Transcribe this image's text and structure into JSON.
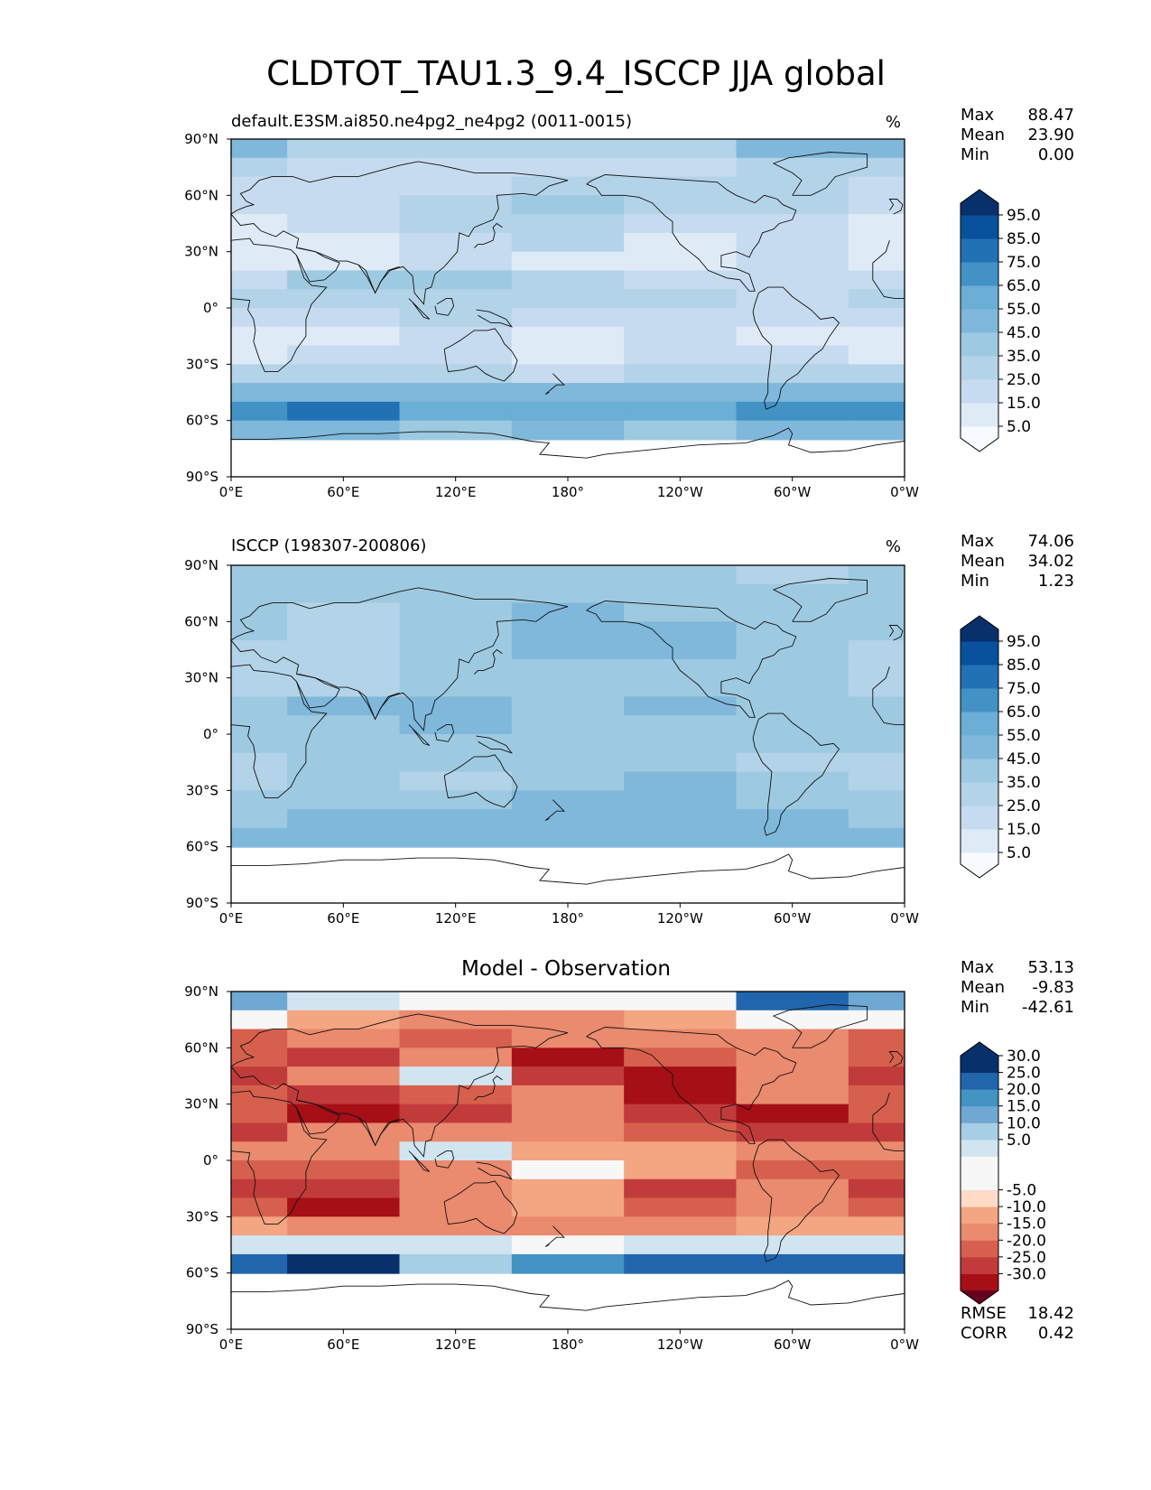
{
  "title": "CLDTOT_TAU1.3_9.4_ISCCP JJA global",
  "colors": {
    "blues": [
      "#f7fbff",
      "#deebf7",
      "#c6dbef",
      "#b3d3e8",
      "#9ecae1",
      "#7fb8da",
      "#6baed6",
      "#4292c6",
      "#2171b5",
      "#08519c",
      "#08306b"
    ],
    "rdbu": [
      "#67001f",
      "#a50f15",
      "#c23b3b",
      "#d6604d",
      "#ea8a6e",
      "#f4a582",
      "#fddbc7",
      "#f7f7f7",
      "#d1e5f0",
      "#a6cfe6",
      "#6fa8d2",
      "#4393c3",
      "#2166ac",
      "#08306b"
    ],
    "coast": "#111111"
  },
  "panels": [
    {
      "id": "test",
      "subtitle_left": "default.E3SM.ai850.ne4pg2_ne4pg2 (0011-0015)",
      "subtitle_right": "%",
      "stats": [
        {
          "label": "Max",
          "value": "88.47"
        },
        {
          "label": "Mean",
          "value": "23.90"
        },
        {
          "label": "Min",
          "value": "0.00"
        }
      ],
      "colorbar": {
        "palette": "blues",
        "levels": [
          0,
          5,
          10,
          15,
          20,
          25,
          30,
          35,
          40,
          45,
          50,
          55,
          60,
          65,
          70,
          75,
          80,
          85,
          90,
          95,
          100
        ],
        "labels": [
          "5.0",
          "15.0",
          "25.0",
          "35.0",
          "45.0",
          "55.0",
          "65.0",
          "75.0",
          "85.0",
          "95.0"
        ]
      }
    },
    {
      "id": "ref",
      "subtitle_left": "ISCCP (198307-200806)",
      "subtitle_right": "%",
      "stats": [
        {
          "label": "Max",
          "value": "74.06"
        },
        {
          "label": "Mean",
          "value": "34.02"
        },
        {
          "label": "Min",
          "value": "1.23"
        }
      ],
      "colorbar": {
        "palette": "blues",
        "levels": [
          0,
          5,
          10,
          15,
          20,
          25,
          30,
          35,
          40,
          45,
          50,
          55,
          60,
          65,
          70,
          75,
          80,
          85,
          90,
          95,
          100
        ],
        "labels": [
          "5.0",
          "15.0",
          "25.0",
          "35.0",
          "45.0",
          "55.0",
          "65.0",
          "75.0",
          "85.0",
          "95.0"
        ]
      }
    },
    {
      "id": "diff",
      "center_title": "Model - Observation",
      "stats": [
        {
          "label": "Max",
          "value": "53.13"
        },
        {
          "label": "Mean",
          "value": "-9.83"
        },
        {
          "label": "Min",
          "value": "-42.61"
        }
      ],
      "extra_stats": [
        {
          "label": "RMSE",
          "value": "18.42"
        },
        {
          "label": "CORR",
          "value": "0.42"
        }
      ],
      "colorbar": {
        "palette": "rdbu",
        "levels": [
          -35,
          -30,
          -25,
          -20,
          -15,
          -10,
          -5,
          5,
          10,
          15,
          20,
          25,
          30,
          35
        ],
        "labels": [
          "-30.0",
          "-25.0",
          "-20.0",
          "-15.0",
          "-10.0",
          "-5.0",
          "5.0",
          "10.0",
          "15.0",
          "20.0",
          "25.0",
          "30.0"
        ]
      }
    }
  ],
  "chart_data": [
    {
      "type": "heatmap",
      "title": "default.E3SM.ai850.ne4pg2_ne4pg2 (0011-0015)",
      "units": "%",
      "xlim": [
        0,
        360
      ],
      "ylim": [
        -90,
        90
      ],
      "x_ticks": [
        "0°E",
        "60°E",
        "120°E",
        "180°",
        "120°W",
        "60°W",
        "0°W"
      ],
      "y_ticks": [
        "90°N",
        "60°N",
        "30°N",
        "0°",
        "30°S",
        "60°S",
        "90°S"
      ],
      "levels": [
        0,
        5,
        10,
        15,
        20,
        25,
        30,
        35,
        40,
        45,
        50,
        55,
        60,
        65,
        70,
        75,
        80,
        85,
        90,
        95,
        100
      ],
      "lat": [
        85,
        75,
        65,
        55,
        45,
        35,
        25,
        15,
        5,
        -5,
        -15,
        -25,
        -35,
        -45,
        -55,
        -65,
        -75,
        -85
      ],
      "lon_step": 60,
      "grid": [
        [
          45,
          30,
          28,
          28,
          28,
          45,
          45
        ],
        [
          25,
          22,
          22,
          24,
          24,
          28,
          25
        ],
        [
          18,
          18,
          22,
          28,
          25,
          28,
          18
        ],
        [
          15,
          18,
          28,
          35,
          28,
          28,
          15
        ],
        [
          10,
          15,
          32,
          30,
          22,
          20,
          10
        ],
        [
          8,
          10,
          20,
          25,
          12,
          15,
          8
        ],
        [
          12,
          12,
          18,
          12,
          10,
          15,
          12
        ],
        [
          18,
          35,
          38,
          28,
          22,
          20,
          18
        ],
        [
          25,
          30,
          30,
          25,
          28,
          22,
          25
        ],
        [
          22,
          22,
          28,
          18,
          22,
          18,
          22
        ],
        [
          12,
          14,
          18,
          14,
          15,
          12,
          12
        ],
        [
          10,
          15,
          15,
          12,
          15,
          18,
          10
        ],
        [
          25,
          28,
          25,
          22,
          25,
          28,
          25
        ],
        [
          50,
          50,
          48,
          45,
          48,
          52,
          50
        ],
        [
          70,
          75,
          55,
          58,
          60,
          70,
          70
        ],
        [
          45,
          45,
          40,
          48,
          42,
          45,
          45
        ],
        [
          null,
          null,
          null,
          null,
          null,
          null,
          null
        ],
        [
          null,
          null,
          null,
          null,
          null,
          null,
          null
        ]
      ]
    },
    {
      "type": "heatmap",
      "title": "ISCCP (198307-200806)",
      "units": "%",
      "xlim": [
        0,
        360
      ],
      "ylim": [
        -90,
        90
      ],
      "x_ticks": [
        "0°E",
        "60°E",
        "120°E",
        "180°",
        "120°W",
        "60°W",
        "0°W"
      ],
      "y_ticks": [
        "90°N",
        "60°N",
        "30°N",
        "0°",
        "30°S",
        "60°S",
        "90°S"
      ],
      "levels": [
        0,
        5,
        10,
        15,
        20,
        25,
        30,
        35,
        40,
        45,
        50,
        55,
        60,
        65,
        70,
        75,
        80,
        85,
        90,
        95,
        100
      ],
      "lat": [
        85,
        75,
        65,
        55,
        45,
        35,
        25,
        15,
        5,
        -5,
        -15,
        -25,
        -35,
        -45,
        -55,
        -65,
        -75,
        -85
      ],
      "lon_step": 60,
      "grid": [
        [
          35,
          35,
          35,
          35,
          35,
          30,
          35
        ],
        [
          42,
          38,
          38,
          40,
          42,
          35,
          42
        ],
        [
          40,
          32,
          40,
          45,
          42,
          38,
          40
        ],
        [
          38,
          30,
          42,
          48,
          45,
          40,
          38
        ],
        [
          30,
          28,
          38,
          50,
          45,
          40,
          30
        ],
        [
          25,
          28,
          40,
          42,
          35,
          40,
          25
        ],
        [
          30,
          28,
          42,
          40,
          40,
          38,
          30
        ],
        [
          40,
          45,
          48,
          42,
          45,
          42,
          40
        ],
        [
          42,
          40,
          45,
          38,
          42,
          40,
          42
        ],
        [
          38,
          35,
          40,
          38,
          42,
          35,
          38
        ],
        [
          25,
          38,
          42,
          40,
          42,
          30,
          25
        ],
        [
          25,
          40,
          32,
          40,
          45,
          35,
          25
        ],
        [
          38,
          40,
          38,
          45,
          45,
          40,
          38
        ],
        [
          42,
          45,
          45,
          48,
          45,
          45,
          42
        ],
        [
          48,
          50,
          50,
          48,
          48,
          50,
          48
        ],
        [
          null,
          null,
          null,
          null,
          null,
          null,
          null
        ],
        [
          null,
          null,
          null,
          null,
          null,
          null,
          null
        ],
        [
          null,
          null,
          null,
          null,
          null,
          null,
          null
        ]
      ]
    },
    {
      "type": "heatmap",
      "title": "Model - Observation",
      "units": "%",
      "xlim": [
        0,
        360
      ],
      "ylim": [
        -90,
        90
      ],
      "x_ticks": [
        "0°E",
        "60°E",
        "120°E",
        "180°",
        "120°W",
        "60°W",
        "0°W"
      ],
      "y_ticks": [
        "90°N",
        "60°N",
        "30°N",
        "0°",
        "30°S",
        "60°S",
        "90°S"
      ],
      "levels": [
        -35,
        -30,
        -25,
        -20,
        -15,
        -10,
        -5,
        5,
        10,
        15,
        20,
        25,
        30,
        35
      ],
      "lat": [
        85,
        75,
        65,
        55,
        45,
        35,
        25,
        15,
        5,
        -5,
        -15,
        -25,
        -35,
        -45,
        -55,
        -65,
        -75,
        -85
      ],
      "lon_step": 60,
      "grid": [
        [
          15,
          5,
          -5,
          0,
          0,
          25,
          15
        ],
        [
          -5,
          -10,
          -15,
          -15,
          -10,
          -5,
          -5
        ],
        [
          -20,
          -15,
          -20,
          -12,
          -15,
          -15,
          -20
        ],
        [
          -20,
          -22,
          -15,
          -30,
          -20,
          -15,
          -20
        ],
        [
          -22,
          -15,
          5,
          -25,
          -30,
          -15,
          -22
        ],
        [
          -20,
          -25,
          -20,
          -12,
          -30,
          -15,
          -20
        ],
        [
          -20,
          -30,
          -25,
          -15,
          -25,
          -30,
          -20
        ],
        [
          -25,
          -15,
          -12,
          -12,
          -20,
          -25,
          -25
        ],
        [
          -15,
          -15,
          5,
          -10,
          -10,
          -15,
          -15
        ],
        [
          -20,
          -20,
          -12,
          -5,
          -10,
          -20,
          -20
        ],
        [
          -25,
          -25,
          -15,
          -10,
          -25,
          -15,
          -25
        ],
        [
          -20,
          -28,
          -15,
          -10,
          -20,
          -12,
          -20
        ],
        [
          -10,
          -12,
          -15,
          -15,
          -12,
          -10,
          -10
        ],
        [
          8,
          5,
          5,
          -5,
          5,
          8,
          8
        ],
        [
          28,
          30,
          12,
          20,
          25,
          28,
          28
        ],
        [
          null,
          null,
          null,
          null,
          null,
          null,
          null
        ],
        [
          null,
          null,
          null,
          null,
          null,
          null,
          null
        ],
        [
          null,
          null,
          null,
          null,
          null,
          null,
          null
        ]
      ]
    }
  ]
}
